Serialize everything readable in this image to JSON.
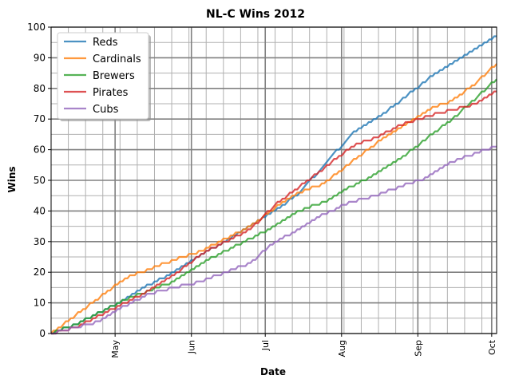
{
  "chart_data": {
    "type": "line",
    "title": "NL-C Wins 2012",
    "xlabel": "Date",
    "ylabel": "Wins",
    "x_axis_type": "date",
    "xlim": [
      "2012-04-05",
      "2012-10-03"
    ],
    "ylim": [
      0,
      100
    ],
    "yticks": [
      0,
      10,
      20,
      30,
      40,
      50,
      60,
      70,
      80,
      90,
      100
    ],
    "xticks": [
      {
        "date": "2012-05-01",
        "label": "May"
      },
      {
        "date": "2012-06-01",
        "label": "Jun"
      },
      {
        "date": "2012-07-01",
        "label": "Jul"
      },
      {
        "date": "2012-08-01",
        "label": "Aug"
      },
      {
        "date": "2012-09-01",
        "label": "Sep"
      },
      {
        "date": "2012-10-01",
        "label": "Oct"
      }
    ],
    "grid": "major and minor",
    "legend_position": "upper-left",
    "series": [
      {
        "name": "Reds",
        "color": "#1f77b4",
        "points": [
          [
            "2012-04-05",
            0
          ],
          [
            "2012-04-15",
            3
          ],
          [
            "2012-04-25",
            7
          ],
          [
            "2012-05-05",
            11
          ],
          [
            "2012-05-15",
            16
          ],
          [
            "2012-05-25",
            20
          ],
          [
            "2012-06-05",
            26
          ],
          [
            "2012-06-15",
            30
          ],
          [
            "2012-06-25",
            35
          ],
          [
            "2012-07-05",
            40
          ],
          [
            "2012-07-15",
            46
          ],
          [
            "2012-07-25",
            55
          ],
          [
            "2012-08-05",
            65
          ],
          [
            "2012-08-15",
            70
          ],
          [
            "2012-08-25",
            76
          ],
          [
            "2012-09-05",
            83
          ],
          [
            "2012-09-15",
            88
          ],
          [
            "2012-09-25",
            93
          ],
          [
            "2012-10-03",
            97
          ]
        ]
      },
      {
        "name": "Cardinals",
        "color": "#ff7f0e",
        "points": [
          [
            "2012-04-05",
            0
          ],
          [
            "2012-04-15",
            6
          ],
          [
            "2012-04-25",
            12
          ],
          [
            "2012-05-05",
            18
          ],
          [
            "2012-05-15",
            21
          ],
          [
            "2012-05-25",
            24
          ],
          [
            "2012-06-05",
            27
          ],
          [
            "2012-06-15",
            31
          ],
          [
            "2012-06-25",
            35
          ],
          [
            "2012-07-05",
            41
          ],
          [
            "2012-07-15",
            46
          ],
          [
            "2012-07-25",
            49
          ],
          [
            "2012-08-05",
            56
          ],
          [
            "2012-08-15",
            62
          ],
          [
            "2012-08-25",
            67
          ],
          [
            "2012-09-05",
            73
          ],
          [
            "2012-09-15",
            76
          ],
          [
            "2012-09-25",
            82
          ],
          [
            "2012-10-03",
            88
          ]
        ]
      },
      {
        "name": "Brewers",
        "color": "#2ca02c",
        "points": [
          [
            "2012-04-05",
            0
          ],
          [
            "2012-04-15",
            3
          ],
          [
            "2012-04-25",
            7
          ],
          [
            "2012-05-05",
            11
          ],
          [
            "2012-05-15",
            14
          ],
          [
            "2012-05-25",
            17
          ],
          [
            "2012-06-05",
            23
          ],
          [
            "2012-06-15",
            27
          ],
          [
            "2012-06-25",
            31
          ],
          [
            "2012-07-05",
            35
          ],
          [
            "2012-07-15",
            40
          ],
          [
            "2012-07-25",
            43
          ],
          [
            "2012-08-05",
            48
          ],
          [
            "2012-08-15",
            52
          ],
          [
            "2012-08-25",
            57
          ],
          [
            "2012-09-05",
            64
          ],
          [
            "2012-09-15",
            70
          ],
          [
            "2012-09-25",
            77
          ],
          [
            "2012-10-03",
            83
          ]
        ]
      },
      {
        "name": "Pirates",
        "color": "#d62728",
        "points": [
          [
            "2012-04-05",
            0
          ],
          [
            "2012-04-15",
            2
          ],
          [
            "2012-04-25",
            6
          ],
          [
            "2012-05-05",
            10
          ],
          [
            "2012-05-15",
            14
          ],
          [
            "2012-05-25",
            19
          ],
          [
            "2012-06-05",
            26
          ],
          [
            "2012-06-15",
            30
          ],
          [
            "2012-06-25",
            34
          ],
          [
            "2012-07-05",
            42
          ],
          [
            "2012-07-15",
            48
          ],
          [
            "2012-07-25",
            54
          ],
          [
            "2012-08-05",
            61
          ],
          [
            "2012-08-15",
            64
          ],
          [
            "2012-08-25",
            68
          ],
          [
            "2012-09-05",
            71
          ],
          [
            "2012-09-15",
            73
          ],
          [
            "2012-09-25",
            75
          ],
          [
            "2012-10-03",
            79
          ]
        ]
      },
      {
        "name": "Cubs",
        "color": "#9467bd",
        "points": [
          [
            "2012-04-05",
            0
          ],
          [
            "2012-04-15",
            2
          ],
          [
            "2012-04-25",
            4
          ],
          [
            "2012-05-05",
            9
          ],
          [
            "2012-05-15",
            13
          ],
          [
            "2012-05-25",
            15
          ],
          [
            "2012-06-05",
            17
          ],
          [
            "2012-06-15",
            20
          ],
          [
            "2012-06-25",
            23
          ],
          [
            "2012-07-05",
            30
          ],
          [
            "2012-07-15",
            34
          ],
          [
            "2012-07-25",
            39
          ],
          [
            "2012-08-05",
            43
          ],
          [
            "2012-08-15",
            45
          ],
          [
            "2012-08-25",
            48
          ],
          [
            "2012-09-05",
            51
          ],
          [
            "2012-09-15",
            56
          ],
          [
            "2012-09-25",
            59
          ],
          [
            "2012-10-03",
            61
          ]
        ]
      }
    ]
  }
}
